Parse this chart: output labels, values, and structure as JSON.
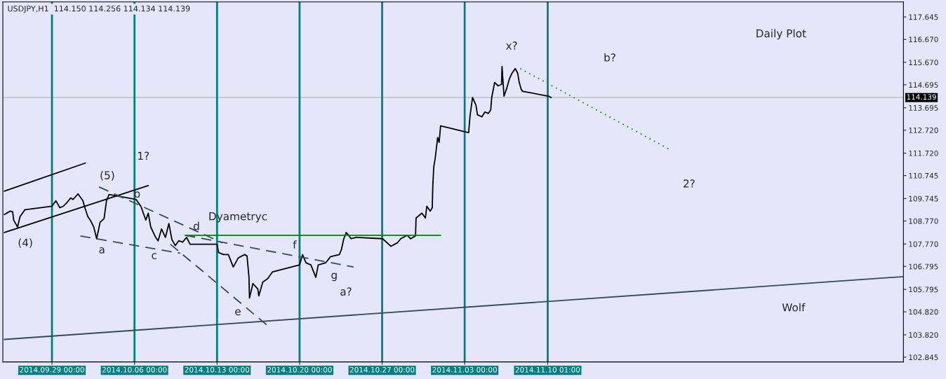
{
  "chart_data": {
    "type": "line",
    "title": "USDJPY,H1  114.150 114.256 114.134 114.139",
    "xlim": [
      "2014-09-24T20:00",
      "2014-12-10T05:00"
    ],
    "ylim": [
      102.64,
      118.3
    ],
    "xticks": [
      {
        "value": "2014-09-29T00:00",
        "label": "2014.09.29 00:00"
      },
      {
        "value": "2014-10-06T00:00",
        "label": "2014.10.06 00:00"
      },
      {
        "value": "2014-10-13T00:00",
        "label": "2014.10.13 00:00"
      },
      {
        "value": "2014-10-20T00:00",
        "label": "2014.10.20 00:00"
      },
      {
        "value": "2014-10-27T00:00",
        "label": "2014.10.27 00:00"
      },
      {
        "value": "2014-11-03T00:00",
        "label": "2014.11.03 00:00"
      },
      {
        "value": "2014-11-10T01:00",
        "label": "2014.11.10 01:00"
      }
    ],
    "yticks": [
      {
        "value": 102.845,
        "label": "102.845"
      },
      {
        "value": 103.82,
        "label": "103.820"
      },
      {
        "value": 104.82,
        "label": "104.820"
      },
      {
        "value": 105.795,
        "label": "105.795"
      },
      {
        "value": 106.795,
        "label": "106.795"
      },
      {
        "value": 107.77,
        "label": "107.770"
      },
      {
        "value": 108.77,
        "label": "108.770"
      },
      {
        "value": 109.745,
        "label": "109.745"
      },
      {
        "value": 110.745,
        "label": "110.745"
      },
      {
        "value": 111.72,
        "label": "111.720"
      },
      {
        "value": 112.72,
        "label": "112.720"
      },
      {
        "value": 113.695,
        "label": "113.695"
      },
      {
        "value": 114.695,
        "label": "114.695"
      },
      {
        "value": 115.67,
        "label": "115.670"
      },
      {
        "value": 116.67,
        "label": "116.670"
      },
      {
        "value": 117.645,
        "label": "117.645"
      }
    ],
    "grid": false,
    "legend": false,
    "series": [
      {
        "color": "#000000",
        "line_style": "solid",
        "x": [
          "2014-09-24T23:00",
          "2014-09-25T11:00",
          "2014-09-25T16:00",
          "2014-09-25T18:00",
          "2014-09-26T02:00",
          "2014-09-26T07:00",
          "2014-09-26T17:00",
          "2014-09-29T00:00",
          "2014-09-29T08:00",
          "2014-09-29T16:00",
          "2014-09-29T23:00",
          "2014-09-30T06:00",
          "2014-09-30T14:00",
          "2014-09-30T19:00",
          "2014-10-01T05:00",
          "2014-10-01T15:00",
          "2014-10-01T18:00",
          "2014-10-02T01:00",
          "2014-10-02T06:00",
          "2014-10-02T13:00",
          "2014-10-02T19:00",
          "2014-10-03T02:00",
          "2014-10-03T10:00",
          "2014-10-03T15:00",
          "2014-10-03T20:00",
          "2014-10-06T03:00",
          "2014-10-06T13:00",
          "2014-10-06T23:00",
          "2014-10-07T04:00",
          "2014-10-07T09:00",
          "2014-10-07T19:00",
          "2014-10-08T00:00",
          "2014-10-08T07:00",
          "2014-10-08T15:00",
          "2014-10-08T22:00",
          "2014-10-09T04:00",
          "2014-10-09T11:00",
          "2014-10-09T18:00",
          "2014-10-10T02:00",
          "2014-10-10T10:00",
          "2014-10-10T17:00",
          "2014-10-13T00:00",
          "2014-10-13T03:00",
          "2014-10-13T13:00",
          "2014-10-13T23:00",
          "2014-10-14T09:00",
          "2014-10-14T19:00",
          "2014-10-15T08:00",
          "2014-10-15T13:00",
          "2014-10-15T17:00",
          "2014-10-15T18:00",
          "2014-10-16T01:00",
          "2014-10-16T11:00",
          "2014-10-16T13:00",
          "2014-10-16T21:00",
          "2014-10-17T07:00",
          "2014-10-17T17:00",
          "2014-10-20T00:00",
          "2014-10-20T06:00",
          "2014-10-20T13:00",
          "2014-10-20T23:00",
          "2014-10-21T09:00",
          "2014-10-21T14:00",
          "2014-10-22T05:00",
          "2014-10-22T15:00",
          "2014-10-23T09:00",
          "2014-10-23T13:00",
          "2014-10-23T18:00",
          "2014-10-23T23:00",
          "2014-10-24T09:00",
          "2014-10-24T19:00",
          "2014-10-27T01:00",
          "2014-10-27T18:00",
          "2014-10-28T07:00",
          "2014-10-28T14:00",
          "2014-10-29T03:00",
          "2014-10-29T10:00",
          "2014-10-29T20:00",
          "2014-10-29T21:00",
          "2014-10-30T09:00",
          "2014-10-30T16:00",
          "2014-10-30T19:00",
          "2014-10-31T02:00",
          "2014-10-31T06:00",
          "2014-10-31T07:00",
          "2014-10-31T09:00",
          "2014-10-31T12:00",
          "2014-10-31T17:00",
          "2014-10-31T20:00",
          "2014-10-31T23:00",
          "2014-11-03T08:00",
          "2014-11-03T11:00",
          "2014-11-03T16:00",
          "2014-11-03T23:00",
          "2014-11-04T02:00",
          "2014-11-04T11:00",
          "2014-11-04T17:00",
          "2014-11-05T00:00",
          "2014-11-05T05:00",
          "2014-11-05T07:00",
          "2014-11-05T13:00",
          "2014-11-05T20:00",
          "2014-11-06T03:00",
          "2014-11-06T04:00",
          "2014-11-06T08:00",
          "2014-11-06T13:00",
          "2014-11-06T19:00",
          "2014-11-07T00:00",
          "2014-11-07T07:00",
          "2014-11-07T12:00",
          "2014-11-07T15:00",
          "2014-11-07T19:00",
          "2014-11-07T22:00",
          "2014-11-10T03:00",
          "2014-11-10T08:00"
        ],
        "values": [
          109.05,
          109.2,
          109.17,
          108.81,
          108.51,
          108.96,
          109.26,
          109.41,
          109.65,
          109.35,
          109.41,
          109.56,
          109.77,
          109.71,
          109.95,
          109.65,
          109.41,
          108.96,
          108.81,
          108.51,
          108.0,
          108.72,
          108.87,
          109.65,
          109.92,
          109.71,
          109.41,
          108.81,
          109.11,
          108.51,
          108.06,
          107.91,
          108.42,
          108.06,
          108.66,
          107.97,
          107.7,
          107.91,
          107.85,
          108.06,
          107.76,
          107.76,
          107.4,
          107.31,
          107.31,
          106.77,
          107.16,
          107.31,
          107.25,
          106.32,
          105.42,
          106.05,
          105.81,
          105.51,
          106.11,
          106.26,
          106.56,
          106.86,
          107.31,
          106.95,
          106.86,
          106.32,
          106.86,
          106.95,
          107.22,
          107.31,
          107.52,
          108.0,
          108.27,
          108.0,
          108.06,
          108.0,
          107.67,
          107.82,
          108.0,
          108.15,
          108.0,
          108.12,
          108.9,
          109.11,
          108.9,
          109.41,
          109.2,
          109.35,
          110.22,
          111.11,
          111.5,
          112.4,
          112.19,
          112.91,
          112.61,
          113.36,
          114.14,
          113.81,
          113.39,
          113.3,
          113.51,
          113.45,
          113.6,
          114.14,
          114.8,
          114.65,
          114.71,
          115.49,
          114.2,
          114.5,
          114.95,
          115.19,
          115.4,
          115.19,
          114.8,
          114.5,
          114.41,
          114.2,
          114.14
        ]
      },
      {
        "color": "#000000",
        "line_style": "solid",
        "x": [
          "2014-09-24T23:00",
          "2014-10-01T20:00"
        ],
        "values": [
          110.07,
          111.29
        ]
      },
      {
        "color": "#000000",
        "line_style": "solid",
        "x": [
          "2014-09-24T23:00",
          "2014-10-07T04:00"
        ],
        "values": [
          108.27,
          110.31
        ]
      },
      {
        "color": "#2f4f4f",
        "line_style": "dashed",
        "x": [
          "2014-10-01T10:00",
          "2014-10-09T21:00"
        ],
        "values": [
          108.12,
          107.37
        ]
      },
      {
        "color": "#2f4f4f",
        "line_style": "dashed",
        "x": [
          "2014-10-03T00:00",
          "2014-10-13T11:00"
        ],
        "values": [
          110.25,
          107.82
        ]
      },
      {
        "color": "#2f4f4f",
        "line_style": "dashed",
        "x": [
          "2014-10-10T07:00",
          "2014-10-24T14:00"
        ],
        "values": [
          108.15,
          106.77
        ]
      },
      {
        "color": "#2f4f4f",
        "line_style": "dashed",
        "x": [
          "2014-10-09T01:00",
          "2014-10-17T07:00"
        ],
        "values": [
          107.76,
          104.22
        ]
      },
      {
        "color": "#008000",
        "line_style": "solid",
        "x": [
          "2014-10-10T07:00",
          "2014-10-31T23:00"
        ],
        "values": [
          108.15,
          108.15
        ]
      },
      {
        "color": "#2f4f4f",
        "line_style": "solid",
        "x": [
          "2014-09-24T23:00",
          "2014-12-10T05:00"
        ],
        "values": [
          103.62,
          106.35
        ]
      },
      {
        "color": "#00a000",
        "line_style": "dotted",
        "x": [
          "2014-11-07T17:00",
          "2014-11-20T11:00"
        ],
        "values": [
          115.4,
          111.86
        ]
      }
    ],
    "ref_lines": [
      {
        "axis": "y",
        "value": 114.139,
        "label": "114.139",
        "color": "#c0c0c0"
      },
      {
        "axis": "x",
        "value": "2014-09-29T00:00",
        "color": "#008080"
      },
      {
        "axis": "x",
        "value": "2014-10-06T00:00",
        "color": "#008080"
      },
      {
        "axis": "x",
        "value": "2014-10-13T00:00",
        "color": "#008080"
      },
      {
        "axis": "x",
        "value": "2014-10-20T00:00",
        "color": "#008080"
      },
      {
        "axis": "x",
        "value": "2014-10-27T00:00",
        "color": "#008080"
      },
      {
        "axis": "x",
        "value": "2014-11-03T00:00",
        "color": "#008080"
      },
      {
        "axis": "x",
        "value": "2014-11-10T01:00",
        "color": "#008080"
      }
    ],
    "annotations": [
      "1?",
      "(5)",
      "b",
      "(4)",
      "a",
      "c",
      "d",
      "Dyametryc",
      "f",
      "g",
      "e",
      "a?",
      "x?",
      "b?",
      "2?",
      "Daily Plot",
      "Wolf"
    ]
  }
}
